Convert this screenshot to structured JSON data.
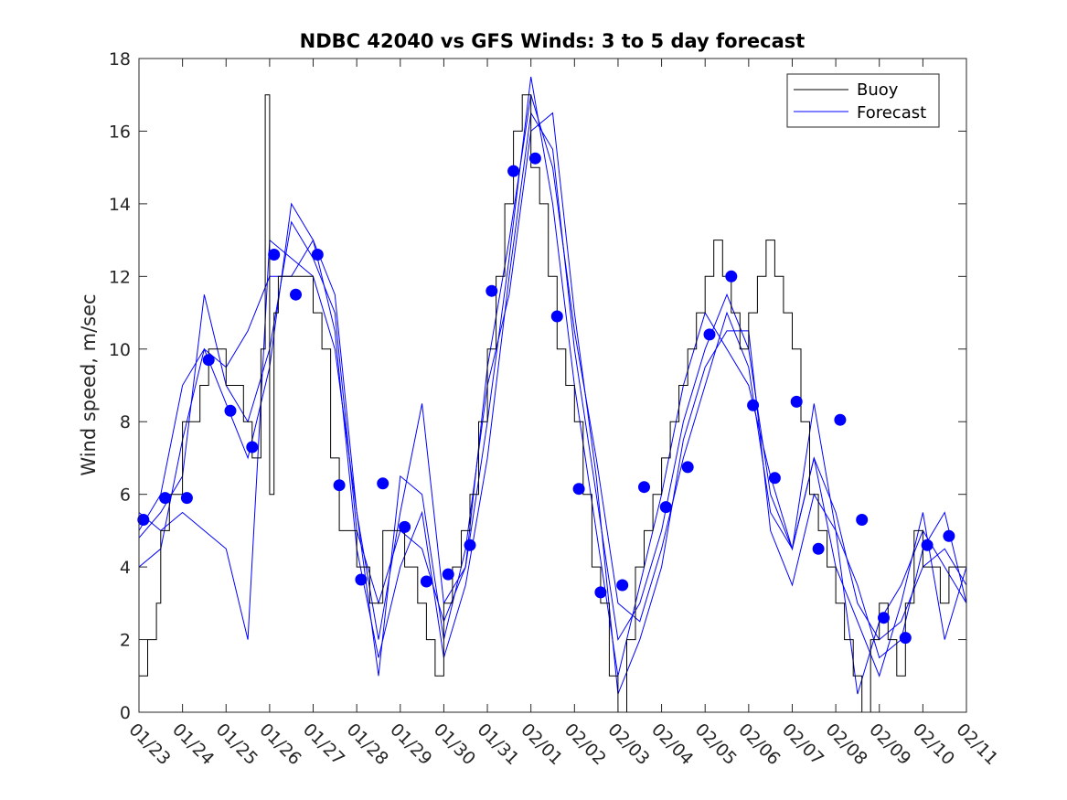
{
  "chart_data": {
    "type": "line",
    "title": "NDBC 42040 vs GFS Winds: 3 to 5 day forecast",
    "xlabel": "",
    "ylabel": "Wind speed, m/sec",
    "ylim": [
      0,
      18
    ],
    "xlim": [
      0,
      19
    ],
    "yticks": [
      0,
      2,
      4,
      6,
      8,
      10,
      12,
      14,
      16,
      18
    ],
    "ytick_labels": [
      "0",
      "2",
      "4",
      "6",
      "8",
      "10",
      "12",
      "14",
      "16",
      "18"
    ],
    "xticks": [
      0,
      1,
      2,
      3,
      4,
      5,
      6,
      7,
      8,
      9,
      10,
      11,
      12,
      13,
      14,
      15,
      16,
      17,
      18,
      19
    ],
    "xtick_labels": [
      "01/23",
      "01/24",
      "01/25",
      "01/26",
      "01/27",
      "01/28",
      "01/29",
      "01/30",
      "01/31",
      "02/01",
      "02/02",
      "02/03",
      "02/04",
      "02/05",
      "02/06",
      "02/07",
      "02/08",
      "02/09",
      "02/10",
      "02/11"
    ],
    "x_units": "days since 01/23",
    "legend": {
      "position": "top-right",
      "entries": [
        "Buoy",
        "Forecast"
      ]
    },
    "colors": {
      "buoy": "#000000",
      "forecast": "#0000ff",
      "analysis_markers": "#0000ff"
    },
    "buoy": {
      "name": "Buoy",
      "x": [
        0.0,
        0.2,
        0.4,
        0.5,
        0.7,
        0.8,
        1.0,
        1.2,
        1.4,
        1.6,
        1.8,
        2.0,
        2.2,
        2.4,
        2.6,
        2.8,
        2.9,
        3.0,
        3.1,
        3.2,
        3.4,
        3.6,
        3.8,
        4.0,
        4.2,
        4.4,
        4.6,
        4.8,
        5.0,
        5.3,
        5.6,
        5.9,
        6.1,
        6.4,
        6.6,
        6.8,
        7.0,
        7.2,
        7.4,
        7.6,
        7.8,
        8.0,
        8.2,
        8.4,
        8.6,
        8.8,
        9.0,
        9.2,
        9.4,
        9.6,
        9.8,
        10.0,
        10.2,
        10.4,
        10.6,
        10.8,
        11.0,
        11.2,
        11.4,
        11.6,
        11.8,
        12.0,
        12.2,
        12.4,
        12.6,
        12.8,
        13.0,
        13.2,
        13.4,
        13.6,
        13.8,
        14.0,
        14.2,
        14.4,
        14.6,
        14.8,
        15.0,
        15.2,
        15.4,
        15.6,
        15.8,
        16.0,
        16.2,
        16.4,
        16.6,
        16.8,
        17.0,
        17.2,
        17.4,
        17.6,
        17.8,
        18.0,
        18.2,
        18.4,
        18.6,
        18.8,
        19.0
      ],
      "values": [
        1,
        2,
        3,
        5,
        6,
        6,
        8,
        8,
        9,
        10,
        10,
        9,
        9,
        8,
        7,
        10,
        17,
        6,
        11,
        12,
        12,
        12,
        12,
        11,
        10,
        7,
        5,
        5,
        4,
        3,
        5,
        5,
        4,
        3,
        2,
        1,
        3,
        4,
        5,
        6,
        8,
        10,
        12,
        14,
        16,
        17,
        15,
        14,
        12,
        10,
        9,
        8,
        6,
        4,
        3,
        1,
        0,
        2,
        4,
        5,
        6,
        7,
        8,
        9,
        10,
        11,
        12,
        13,
        12,
        11,
        10,
        11,
        12,
        13,
        12,
        11,
        10,
        8,
        6,
        5,
        4,
        3,
        2,
        1,
        0,
        2,
        3,
        2,
        1,
        3,
        5,
        4,
        4,
        3,
        4,
        4,
        3
      ]
    },
    "forecasts": [
      {
        "name": "Forecast",
        "x": [
          0.0,
          0.5,
          1.0,
          1.5,
          2.0,
          2.5,
          3.0,
          3.5,
          4.0,
          4.5,
          5.0,
          5.5,
          6.0,
          6.5,
          7.0,
          7.5,
          8.0,
          8.5,
          9.0,
          9.5,
          10.0,
          10.5,
          11.0,
          11.5,
          12.0,
          12.5,
          13.0,
          13.5,
          14.0,
          14.5,
          15.0,
          15.5,
          16.0,
          16.5,
          17.0,
          17.5,
          18.0,
          18.5,
          19.0
        ],
        "values": [
          4.8,
          5.5,
          6.5,
          11.5,
          9.0,
          8.0,
          10.0,
          13.5,
          12.5,
          11.0,
          5.0,
          3.0,
          5.0,
          4.5,
          2.5,
          4.0,
          9.5,
          13.0,
          17.0,
          15.0,
          10.5,
          7.0,
          3.0,
          2.5,
          4.5,
          7.0,
          9.0,
          11.0,
          9.5,
          5.5,
          4.5,
          7.0,
          5.5,
          3.0,
          2.0,
          2.5,
          4.0,
          4.5,
          3.5
        ]
      },
      {
        "name": "Forecast",
        "x": [
          0.0,
          0.5,
          1.0,
          1.5,
          2.0,
          2.5,
          3.0,
          3.5,
          4.0,
          4.5,
          5.0,
          5.5,
          6.0,
          6.5,
          7.0,
          7.5,
          8.0,
          8.5,
          9.0,
          9.5,
          10.0,
          10.5,
          11.0,
          11.5,
          12.0,
          12.5,
          13.0,
          13.5,
          14.0,
          14.5,
          15.0,
          15.5,
          16.0,
          16.5,
          17.0,
          17.5,
          18.0,
          18.5,
          19.0
        ],
        "values": [
          5.0,
          6.0,
          9.0,
          10.0,
          8.5,
          7.0,
          9.5,
          14.0,
          13.0,
          10.5,
          4.5,
          1.5,
          4.0,
          5.5,
          1.5,
          3.5,
          7.0,
          12.0,
          16.5,
          15.5,
          10.0,
          6.0,
          2.0,
          3.0,
          5.0,
          8.0,
          10.0,
          11.5,
          10.0,
          6.0,
          4.5,
          8.5,
          5.0,
          3.5,
          1.5,
          2.0,
          4.5,
          5.5,
          3.0
        ]
      },
      {
        "name": "Forecast",
        "x": [
          0.0,
          0.5,
          1.0,
          1.5,
          2.0,
          2.5,
          3.0,
          3.5,
          4.0,
          4.5,
          5.0,
          5.5,
          6.0,
          6.5,
          7.0,
          7.5,
          8.0,
          8.5,
          9.0,
          9.5,
          10.0,
          10.5,
          11.0,
          11.5,
          12.0,
          12.5,
          13.0,
          13.5,
          14.0,
          14.5,
          15.0,
          15.5,
          16.0,
          16.5,
          17.0,
          17.5,
          18.0,
          18.5,
          19.0
        ],
        "values": [
          5.5,
          5.0,
          5.5,
          5.0,
          4.5,
          2.0,
          13.0,
          12.5,
          12.0,
          10.0,
          5.5,
          2.0,
          5.5,
          8.5,
          3.0,
          4.0,
          8.0,
          12.5,
          17.5,
          14.0,
          9.0,
          5.0,
          1.0,
          3.5,
          6.0,
          9.0,
          11.0,
          10.0,
          9.0,
          6.5,
          4.5,
          7.0,
          4.0,
          2.5,
          1.0,
          3.0,
          5.5,
          2.0,
          4.0
        ]
      },
      {
        "name": "Forecast",
        "x": [
          0.0,
          0.5,
          1.0,
          1.5,
          2.0,
          2.5,
          3.0,
          3.5,
          4.0,
          4.5,
          5.0,
          5.5,
          6.0,
          6.5,
          7.0,
          7.5,
          8.0,
          8.5,
          9.0,
          9.5,
          10.0,
          10.5,
          11.0,
          11.5,
          12.0,
          12.5,
          13.0,
          13.5,
          14.0,
          14.5,
          15.0,
          15.5,
          16.0,
          16.5,
          17.0,
          17.5,
          18.0,
          18.5,
          19.0
        ],
        "values": [
          4.0,
          4.5,
          7.5,
          10.0,
          9.5,
          10.5,
          12.0,
          12.0,
          13.0,
          11.5,
          5.5,
          1.0,
          6.5,
          6.0,
          2.0,
          4.5,
          9.0,
          11.5,
          16.0,
          16.5,
          11.0,
          6.5,
          0.5,
          2.0,
          4.0,
          7.5,
          9.5,
          10.5,
          10.5,
          5.0,
          3.5,
          6.0,
          5.0,
          0.5,
          2.5,
          3.5,
          5.0,
          4.0,
          3.0
        ]
      }
    ],
    "analysis_points": {
      "name": "Analysis",
      "x": [
        0.1,
        0.6,
        1.1,
        1.6,
        2.1,
        2.6,
        3.1,
        3.6,
        4.1,
        4.6,
        5.1,
        5.6,
        6.1,
        6.6,
        7.1,
        7.6,
        8.1,
        8.6,
        9.1,
        9.6,
        10.1,
        10.6,
        11.1,
        11.6,
        12.1,
        12.6,
        13.1,
        13.6,
        14.1,
        14.6,
        15.1,
        15.6,
        16.1,
        16.6,
        17.1,
        17.6,
        18.1,
        18.6
      ],
      "values": [
        5.3,
        5.9,
        5.9,
        9.7,
        8.3,
        7.3,
        12.6,
        11.5,
        12.6,
        6.25,
        3.65,
        6.3,
        5.1,
        3.6,
        3.8,
        4.6,
        11.6,
        14.9,
        15.25,
        10.9,
        6.15,
        3.3,
        3.5,
        6.2,
        5.65,
        6.75,
        10.4,
        12.0,
        8.45,
        6.45,
        8.55,
        4.5,
        8.05,
        5.3,
        2.6,
        2.05,
        4.6,
        4.85
      ]
    }
  }
}
